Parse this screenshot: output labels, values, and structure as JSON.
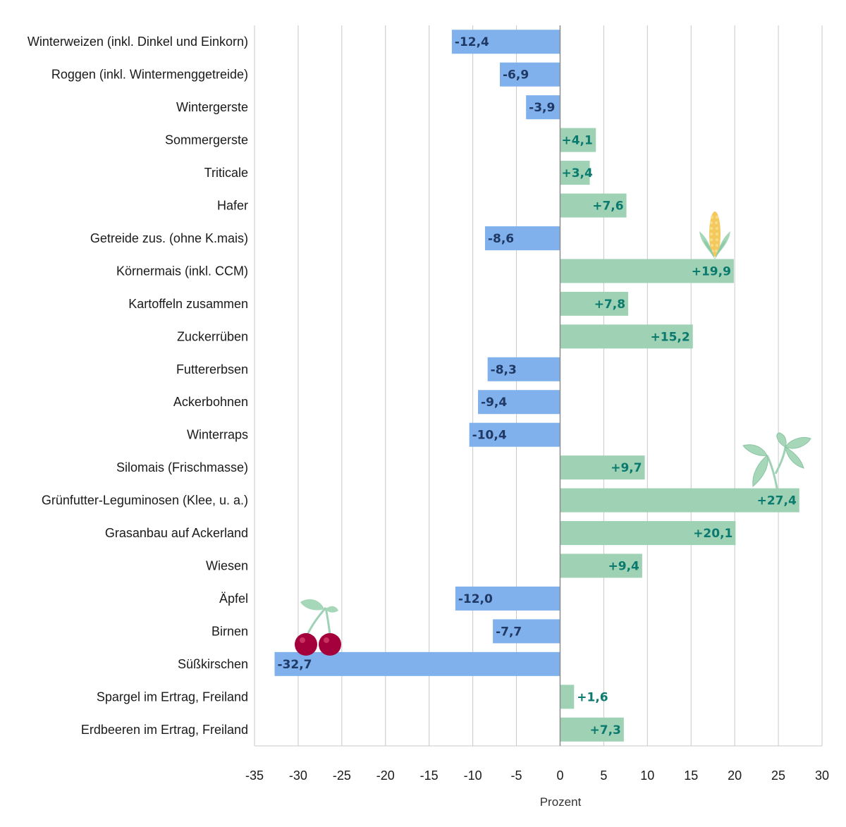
{
  "chart_data": {
    "type": "bar",
    "orientation": "horizontal",
    "categories": [
      "Winterweizen (inkl. Dinkel und Einkorn)",
      "Roggen (inkl. Wintermenggetreide)",
      "Wintergerste",
      "Sommergerste",
      "Triticale",
      "Hafer",
      "Getreide zus. (ohne K.mais)",
      "Körnermais (inkl. CCM)",
      "Kartoffeln zusammen",
      "Zuckerrüben",
      "Futtererbsen",
      "Ackerbohnen",
      "Winterraps",
      "Silomais (Frischmasse)",
      "Grünfutter-Leguminosen (Klee, u. a.)",
      "Grasanbau auf Ackerland",
      "Wiesen",
      "Äpfel",
      "Birnen",
      "Süßkirschen",
      "Spargel im Ertrag, Freiland",
      "Erdbeeren im Ertrag, Freiland"
    ],
    "values": [
      -12.4,
      -6.9,
      -3.9,
      4.1,
      3.4,
      7.6,
      -8.6,
      19.9,
      7.8,
      15.2,
      -8.3,
      -9.4,
      -10.4,
      9.7,
      27.4,
      20.1,
      9.4,
      -12.0,
      -7.7,
      -32.7,
      1.6,
      7.3
    ],
    "value_labels": [
      "-12,4",
      "-6,9",
      "-3,9",
      "+4,1",
      "+3,4",
      "+7,6",
      "-8,6",
      "+19,9",
      "+7,8",
      "+15,2",
      "-8,3",
      "-9,4",
      "-10,4",
      "+9,7",
      "+27,4",
      "+20,1",
      "+9,4",
      "-12,0",
      "-7,7",
      "-32,7",
      "+1,6",
      "+7,3"
    ],
    "xlabel": "Prozent",
    "xlim": [
      -35,
      30
    ],
    "xticks": [
      -35,
      -30,
      -25,
      -20,
      -15,
      -10,
      -5,
      0,
      5,
      10,
      15,
      20,
      25,
      30
    ],
    "xtick_labels": [
      "-35",
      "-30",
      "-25",
      "-20",
      "-15",
      "-10",
      "-5",
      "0",
      "5",
      "10",
      "15",
      "20",
      "25",
      "30"
    ],
    "grid": "vertical",
    "colors": {
      "negative": "#80b1ec",
      "positive": "#9fd2b5",
      "negative_label": "#1f3864",
      "positive_label": "#0b7a6e",
      "grid": "#c8c8c8",
      "axis": "#8c8c8c"
    },
    "decorations": [
      {
        "icon": "corn-icon",
        "near_category": "Körnermais (inkl. CCM)"
      },
      {
        "icon": "clover-icon",
        "near_category": "Grünfutter-Leguminosen (Klee, u. a.)"
      },
      {
        "icon": "cherry-icon",
        "near_category": "Süßkirschen"
      }
    ]
  }
}
